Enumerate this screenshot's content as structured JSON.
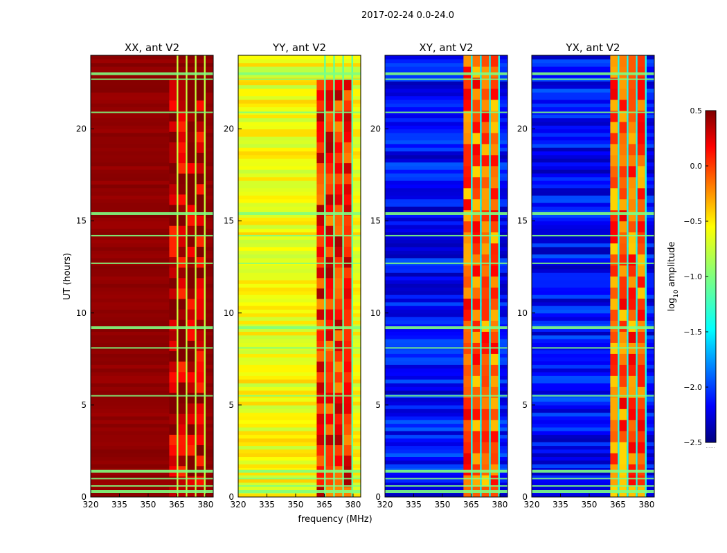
{
  "figure": {
    "suptitle": "2017-02-24 0.0-24.0",
    "ylabel": "UT (hours)",
    "xlabel": "frequency (MHz)"
  },
  "colorbar": {
    "label_main": "log",
    "label_sub": "10",
    "label_rest": " amplitude",
    "ticks": [
      0.5,
      0.0,
      -0.5,
      -1.0,
      -1.5,
      -2.0,
      -2.5
    ],
    "tick_labels": [
      "0.5",
      "0.0",
      "−0.5",
      "−1.0",
      "−1.5",
      "−2.0",
      "−2.5"
    ],
    "vmin": -2.5,
    "vmax": 0.5,
    "colormap": "jet",
    "footer_text": "......"
  },
  "chart_data": {
    "type": "heatmap",
    "title": "2017-02-24 0.0-24.0",
    "xlabel": "frequency (MHz)",
    "ylabel": "UT (hours)",
    "xlim": [
      320,
      384
    ],
    "ylim": [
      0,
      24
    ],
    "x_ticks": [
      320,
      335,
      350,
      365,
      380
    ],
    "y_ticks": [
      0,
      5,
      10,
      15,
      20
    ],
    "value_label": "log10 amplitude",
    "value_range": [
      -2.5,
      0.5
    ],
    "rfi_band_mhz": [
      361,
      380
    ],
    "panels": [
      {
        "name": "XX",
        "title": "XX, ant V2",
        "background_level": 0.45,
        "band_level": 0.2,
        "description": "saturated dark red dominant"
      },
      {
        "name": "YY",
        "title": "YY, ant V2",
        "background_level": -0.65,
        "band_level": -0.1,
        "description": "yellow background, orange band 361-380 MHz"
      },
      {
        "name": "XY",
        "title": "XY, ant V2",
        "background_level": -2.1,
        "band_level": -0.3,
        "description": "blue background, bright band 361-380 MHz"
      },
      {
        "name": "YX",
        "title": "YX, ant V2",
        "background_level": -2.1,
        "band_level": -0.3,
        "description": "blue background, bright band 361-380 MHz"
      }
    ],
    "flagged_rows_hours": [
      0.3,
      0.6,
      1.0,
      1.4,
      5.5,
      8.1,
      9.2,
      12.7,
      14.2,
      15.4,
      20.9,
      22.7,
      23.0
    ]
  }
}
